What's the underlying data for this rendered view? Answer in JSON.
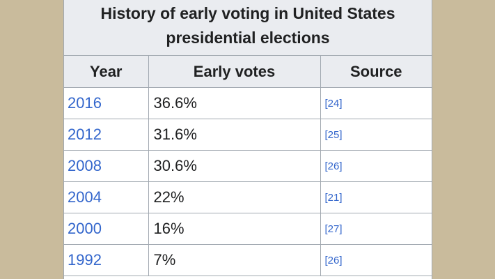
{
  "table": {
    "caption": "History of early voting in United States presidential elections",
    "headers": [
      "Year",
      "Early votes",
      "Source"
    ],
    "rows": [
      {
        "year": "2016",
        "votes": "36.6%",
        "source": "[24]"
      },
      {
        "year": "2012",
        "votes": "31.6%",
        "source": "[25]"
      },
      {
        "year": "2008",
        "votes": "30.6%",
        "source": "[26]"
      },
      {
        "year": "2004",
        "votes": "22%",
        "source": "[21]"
      },
      {
        "year": "2000",
        "votes": "16%",
        "source": "[27]"
      },
      {
        "year": "1992",
        "votes": "7%",
        "source": "[26]"
      }
    ]
  },
  "colors": {
    "background": "#c9bb9c",
    "header_bg": "#eaecf0",
    "link": "#3366cc",
    "border": "#a2a9b1"
  }
}
